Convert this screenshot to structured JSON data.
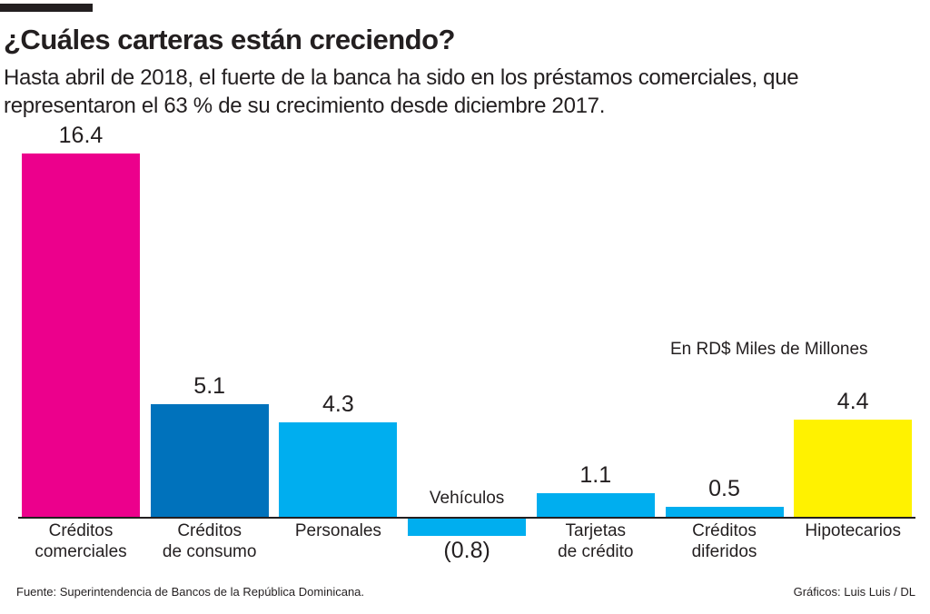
{
  "header": {
    "title": "¿Cuáles carteras están creciendo?",
    "subtitle": "Hasta abril de 2018, el fuerte de la banca ha sido en los préstamos comerciales, que representaron el 63 % de su crecimiento desde diciembre 2017."
  },
  "chart_data": {
    "type": "bar",
    "unit_label": "En RD$ Miles de Millones",
    "categories": [
      "Créditos\ncomerciales",
      "Créditos\nde consumo",
      "Personales",
      "Vehículos",
      "Tarjetas\nde crédito",
      "Créditos\ndiferidos",
      "Hipotecarios"
    ],
    "values": [
      16.4,
      5.1,
      4.3,
      -0.8,
      1.1,
      0.5,
      4.4
    ],
    "value_labels": [
      "16.4",
      "5.1",
      "4.3",
      "(0.8)",
      "1.1",
      "0.5",
      "4.4"
    ],
    "colors": [
      "#ec008c",
      "#0072bc",
      "#00aeef",
      "#00aeef",
      "#00aeef",
      "#00aeef",
      "#fff200"
    ],
    "grid": false
  },
  "footer": {
    "source": "Fuente: Superintendencia de Bancos de la República Dominicana.",
    "credit": "Gráficos: Luis Luis / DL"
  }
}
